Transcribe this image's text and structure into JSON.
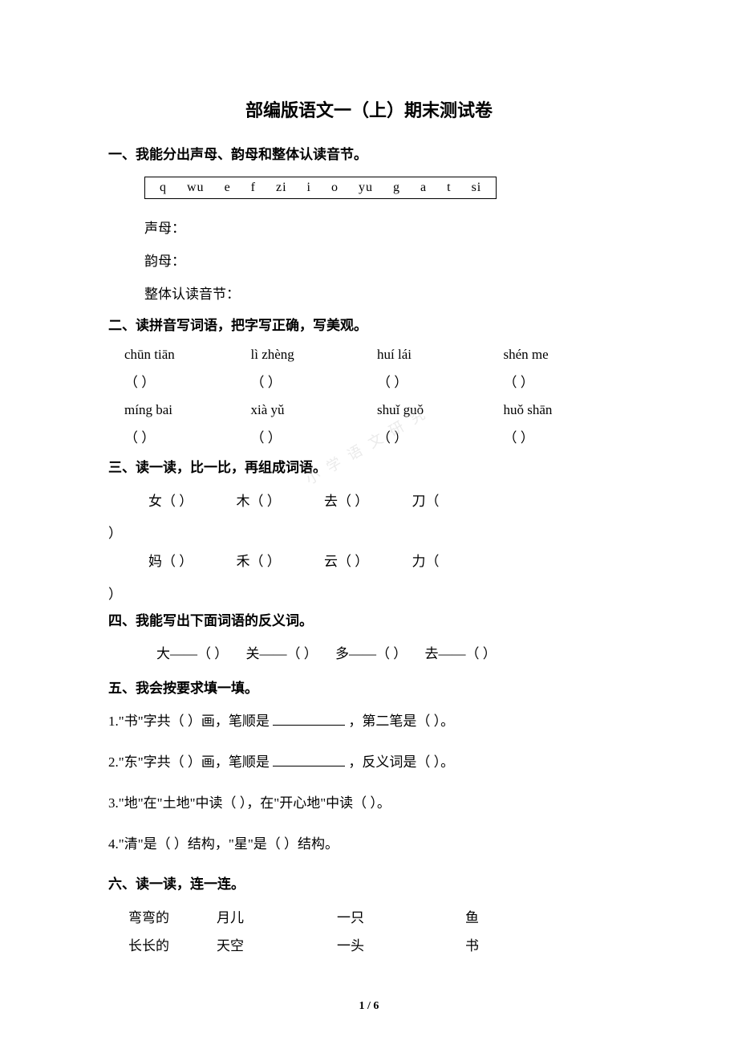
{
  "title": "部编版语文一（上）期末测试卷",
  "sections": {
    "s1": {
      "heading": "一、我能分出声母、韵母和整体认读音节。",
      "items": [
        "q",
        "wu",
        "e",
        "f",
        "zi",
        "i",
        "o",
        "yu",
        "g",
        "a",
        "t",
        "si"
      ],
      "categories": [
        "声母：",
        "韵母：",
        "整体认读音节："
      ]
    },
    "s2": {
      "heading": "二、读拼音写词语，把字写正确，写美观。",
      "row1": [
        "chūn tiān",
        "lì zhèng",
        "huí lái",
        "shén me"
      ],
      "row2": [
        "míng bai",
        "xià yǔ",
        "shuǐ guǒ",
        "huǒ shān"
      ],
      "bracket": "（        ）"
    },
    "s3": {
      "heading": "三、读一读，比一比，再组成词语。",
      "row1": [
        "女（        ）",
        "木（        ）",
        "去（        ）",
        "刀（"
      ],
      "row2": [
        "妈（        ）",
        "禾（        ）",
        "云（        ）",
        "力（"
      ],
      "close": "）"
    },
    "s4": {
      "heading": "四、我能写出下面词语的反义词。",
      "items": [
        "大——（    ）",
        "关——（    ）",
        "多——（    ）",
        "去——（    ）"
      ]
    },
    "s5": {
      "heading": "五、我会按要求填一填。",
      "lines": {
        "l1a": "1.\"书\"字共（    ）画，笔顺是 ",
        "l1b": " ，第二笔是（    ）。",
        "l2a": "2.\"东\"字共（    ）画，笔顺是 ",
        "l2b": " ，反义词是（    ）。",
        "l3": "3.\"地\"在\"土地\"中读（    ），在\"开心地\"中读（    ）。",
        "l4": "4.\"清\"是（    ）结构，\"星\"是（    ）结构。"
      }
    },
    "s6": {
      "heading": "六、读一读，连一连。",
      "rows": [
        [
          "弯弯的",
          "月儿",
          "一只",
          "鱼"
        ],
        [
          "长长的",
          "天空",
          "一头",
          "书"
        ]
      ]
    }
  },
  "watermark": "小学语文研究",
  "page_num": "1 / 6",
  "colors": {
    "background": "#ffffff",
    "text": "#000000",
    "watermark": "#cccccc"
  },
  "fonts": {
    "title_size": 22,
    "body_size": 17,
    "page_num_size": 14
  }
}
